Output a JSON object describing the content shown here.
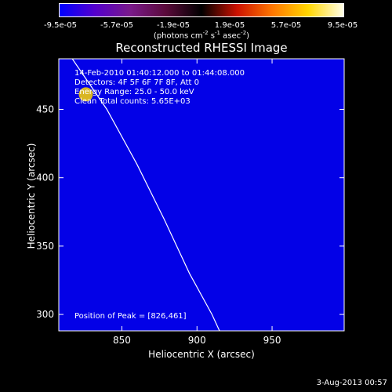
{
  "colorbar": {
    "ticks": [
      "-9.5e-05",
      "-5.7e-05",
      "-1.9e-05",
      "1.9e-05",
      "5.7e-05",
      "9.5e-05"
    ],
    "unit_parts": [
      "(photons cm",
      "-2",
      " s",
      "-1",
      " asec",
      "-2",
      ")"
    ],
    "colors": [
      "#0000ff",
      "#5500cc",
      "#7a1a8a",
      "#5a0a3a",
      "#000000",
      "#cc1100",
      "#ff7700",
      "#ffd600",
      "#fffee8"
    ]
  },
  "chart_data": {
    "type": "heatmap",
    "title": "Reconstructed RHESSI Image",
    "xlabel": "Heliocentric X (arcsec)",
    "ylabel": "Heliocentric Y (arcsec)",
    "xlim": [
      808,
      998
    ],
    "ylim": [
      288,
      487
    ],
    "xticks": [
      850,
      900,
      950
    ],
    "yticks": [
      300,
      350,
      400,
      450
    ],
    "color_range": [
      -9.5e-05,
      9.5e-05
    ],
    "peak_position": [
      826,
      461
    ],
    "limb_curve": [
      [
        817,
        487
      ],
      [
        840,
        450
      ],
      [
        860,
        410
      ],
      [
        878,
        370
      ],
      [
        895,
        330
      ],
      [
        910,
        300
      ],
      [
        915,
        288
      ]
    ],
    "annotations": [
      "14-Feb-2010 01:40:12.000 to 01:44:08.000",
      "Detectors: 4F 5F 6F 7F 8F, Att 0",
      "Energy Range: 25.0 - 50.0 keV",
      "Clean    Total counts: 5.65E+03"
    ],
    "peak_label": "Position of Peak = [826,461]"
  },
  "footer_date": "3-Aug-2013 00:57"
}
